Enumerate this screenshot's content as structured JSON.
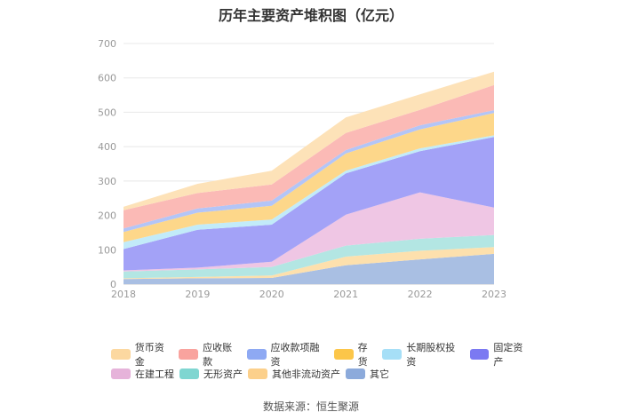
{
  "chart_data": {
    "type": "area",
    "title": "历年主要资产堆积图（亿元）",
    "source": "数据来源：恒生聚源",
    "categories": [
      "2018",
      "2019",
      "2020",
      "2021",
      "2022",
      "2023"
    ],
    "y_ticks": [
      "0",
      "100",
      "200",
      "300",
      "400",
      "500",
      "600",
      "700"
    ],
    "ylim": [
      0,
      700
    ],
    "stacked": true,
    "grid": true,
    "legend_position": "bottom",
    "series": [
      {
        "name": "其它",
        "color": "#a9bfe3",
        "values": [
          15,
          17,
          18,
          55,
          72,
          88
        ]
      },
      {
        "name": "其他非流动资产",
        "color": "#fde0ad",
        "values": [
          2,
          4,
          7,
          25,
          25,
          20
        ]
      },
      {
        "name": "无形资产",
        "color": "#b3e6e3",
        "values": [
          20,
          22,
          25,
          32,
          35,
          35
        ]
      },
      {
        "name": "在建工程",
        "color": "#efc6e4",
        "values": [
          3,
          5,
          15,
          90,
          135,
          80
        ]
      },
      {
        "name": "固定资产",
        "color": "#a3a2f7",
        "values": [
          62,
          110,
          108,
          120,
          120,
          205
        ]
      },
      {
        "name": "长期股权投资",
        "color": "#c2ebf9",
        "values": [
          20,
          15,
          15,
          8,
          8,
          5
        ]
      },
      {
        "name": "存货",
        "color": "#fdd78a",
        "values": [
          30,
          35,
          40,
          50,
          55,
          65
        ]
      },
      {
        "name": "应收款项融资",
        "color": "#b3c5f7",
        "values": [
          10,
          12,
          15,
          10,
          12,
          8
        ]
      },
      {
        "name": "应收账款",
        "color": "#fbbab6",
        "values": [
          53,
          45,
          47,
          50,
          45,
          73
        ]
      },
      {
        "name": "货币资金",
        "color": "#fde2b8",
        "values": [
          10,
          27,
          40,
          45,
          45,
          39
        ]
      }
    ],
    "legend_rows": [
      [
        {
          "name": "货币资金",
          "color": "#fcd8a0"
        },
        {
          "name": "应收账款",
          "color": "#f9a39e"
        },
        {
          "name": "应收款项融资",
          "color": "#8ea9f3"
        },
        {
          "name": "存货",
          "color": "#fcc649"
        },
        {
          "name": "长期股权投资",
          "color": "#a6dff7"
        },
        {
          "name": "固定资产",
          "color": "#7b79f2"
        }
      ],
      [
        {
          "name": "在建工程",
          "color": "#e6b3da"
        },
        {
          "name": "无形资产",
          "color": "#7fd6d1"
        },
        {
          "name": "其他非流动资产",
          "color": "#fcd08b"
        },
        {
          "name": "其它",
          "color": "#8caadb"
        }
      ]
    ]
  }
}
